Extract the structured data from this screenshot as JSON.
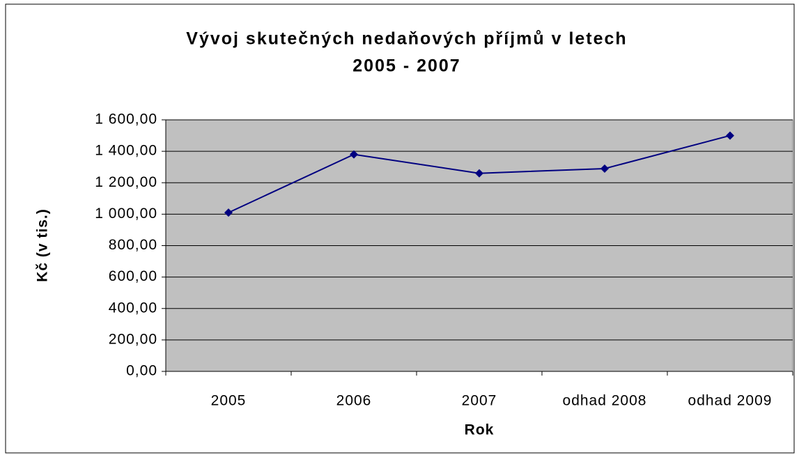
{
  "chart_data": {
    "type": "line",
    "title": [
      "Vývoj skutečných nedaňových příjmů v letech",
      "2005 - 2007"
    ],
    "x_label": "Rok",
    "y_label": "Kč (v tis.)",
    "categories": [
      "2005",
      "2006",
      "2007",
      "odhad 2008",
      "odhad 2009"
    ],
    "series": [
      {
        "color": "#000080",
        "values": [
          1010,
          1380,
          1260,
          1290,
          1500
        ]
      }
    ],
    "ylim": [
      0,
      1600
    ],
    "yticks": [
      {
        "value": 0,
        "label": "0,00"
      },
      {
        "value": 200,
        "label": "200,00"
      },
      {
        "value": 400,
        "label": "400,00"
      },
      {
        "value": 600,
        "label": "600,00"
      },
      {
        "value": 800,
        "label": "800,00"
      },
      {
        "value": 1000,
        "label": "1 000,00"
      },
      {
        "value": 1200,
        "label": "1 200,00"
      },
      {
        "value": 1400,
        "label": "1 400,00"
      },
      {
        "value": 1600,
        "label": "1 600,00"
      }
    ],
    "grid": true
  }
}
